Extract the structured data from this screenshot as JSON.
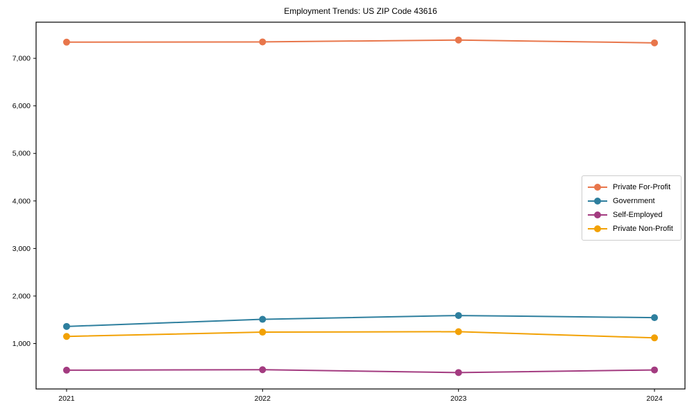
{
  "chart_data": {
    "type": "line",
    "title": "Employment Trends: US ZIP Code 43616",
    "xlabel": "",
    "ylabel": "",
    "categories": [
      "2021",
      "2022",
      "2023",
      "2024"
    ],
    "series": [
      {
        "name": "Private For-Profit",
        "color": "#e8764b",
        "values": [
          7340,
          7345,
          7385,
          7325
        ]
      },
      {
        "name": "Government",
        "color": "#2e7f9e",
        "values": [
          1360,
          1510,
          1590,
          1545
        ]
      },
      {
        "name": "Self-Employed",
        "color": "#a33b80",
        "values": [
          440,
          450,
          390,
          445
        ]
      },
      {
        "name": "Private Non-Profit",
        "color": "#f2a104",
        "values": [
          1150,
          1240,
          1250,
          1120
        ]
      }
    ],
    "ylim": [
      45,
      7760
    ],
    "yticks": [
      1000,
      2000,
      3000,
      4000,
      5000,
      6000,
      7000
    ],
    "ytick_labels": [
      "1,000",
      "2,000",
      "3,000",
      "4,000",
      "5,000",
      "6,000",
      "7,000"
    ],
    "grid": false,
    "legend_position": "right-center",
    "axis_color": "#000000",
    "tick_label_color": "#000000"
  }
}
